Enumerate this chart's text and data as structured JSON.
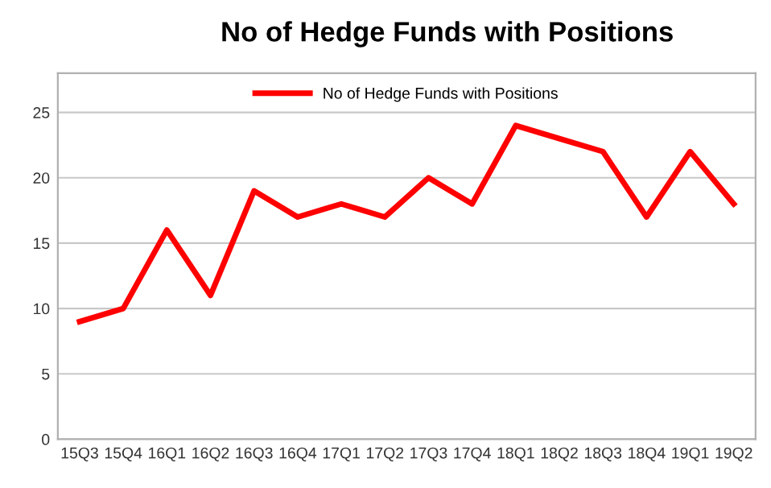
{
  "chart_data": {
    "type": "line",
    "title": "No of Hedge Funds with Positions",
    "categories": [
      "15Q3",
      "15Q4",
      "16Q1",
      "16Q2",
      "16Q3",
      "16Q4",
      "17Q1",
      "17Q2",
      "17Q3",
      "17Q4",
      "18Q1",
      "18Q2",
      "18Q3",
      "18Q4",
      "19Q1",
      "19Q2"
    ],
    "series": [
      {
        "name": "No of Hedge Funds with Positions",
        "color": "#ff0000",
        "values": [
          9,
          10,
          16,
          11,
          19,
          17,
          18,
          17,
          20,
          18,
          24,
          23,
          22,
          17,
          22,
          18
        ]
      }
    ],
    "ylim": [
      0,
      28
    ],
    "yticks": [
      0,
      5,
      10,
      15,
      20,
      25
    ],
    "grid": "y",
    "legend": "top",
    "marker": "none",
    "line_style": "solid"
  }
}
